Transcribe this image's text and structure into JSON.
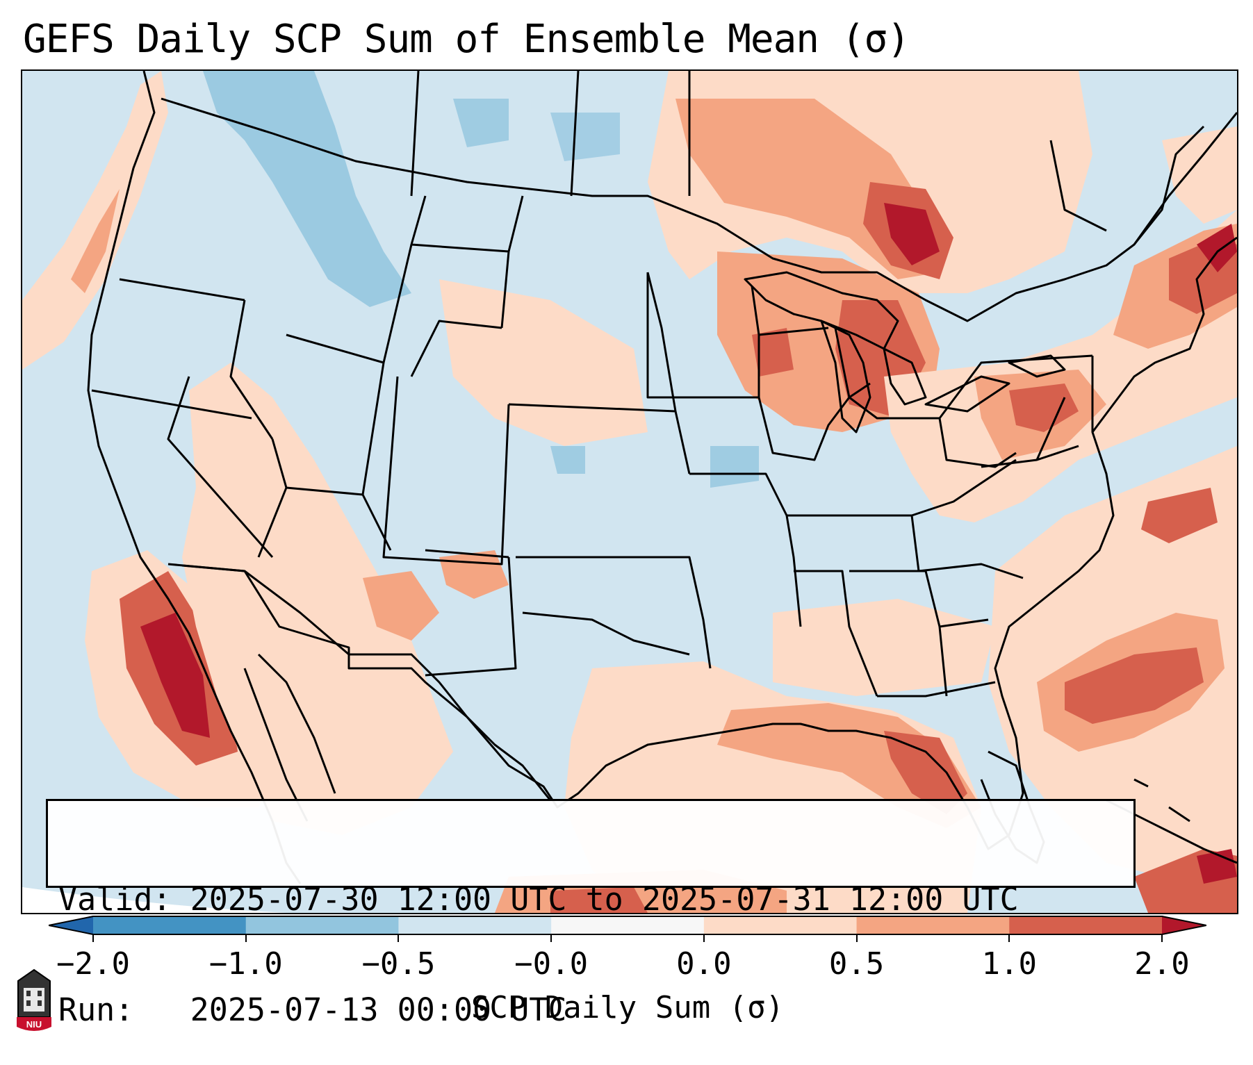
{
  "title": "GEFS Daily SCP Sum of Ensemble Mean (σ)",
  "info": {
    "valid_line": "Valid: 2025-07-30 12:00 UTC to 2025-07-31 12:00 UTC",
    "run_line": "Run:   2025-07-13 00:00 UTC"
  },
  "colorbar": {
    "label": "SCP Daily Sum (σ)",
    "ticks": [
      "−2.0",
      "−1.0",
      "−0.5",
      "−0.0",
      "0.0",
      "0.5",
      "1.0",
      "2.0"
    ],
    "colors": [
      "#2166ac",
      "#4393c3",
      "#92c5de",
      "#d1e5f0",
      "#f7f7f7",
      "#fddbc7",
      "#f4a582",
      "#d6604d",
      "#b2182b"
    ]
  },
  "logo": {
    "text": "NIU",
    "color": "#c8102e"
  },
  "map": {
    "background_color": "#d1e5f0",
    "region": "Contiguous United States and adjacent waters"
  }
}
